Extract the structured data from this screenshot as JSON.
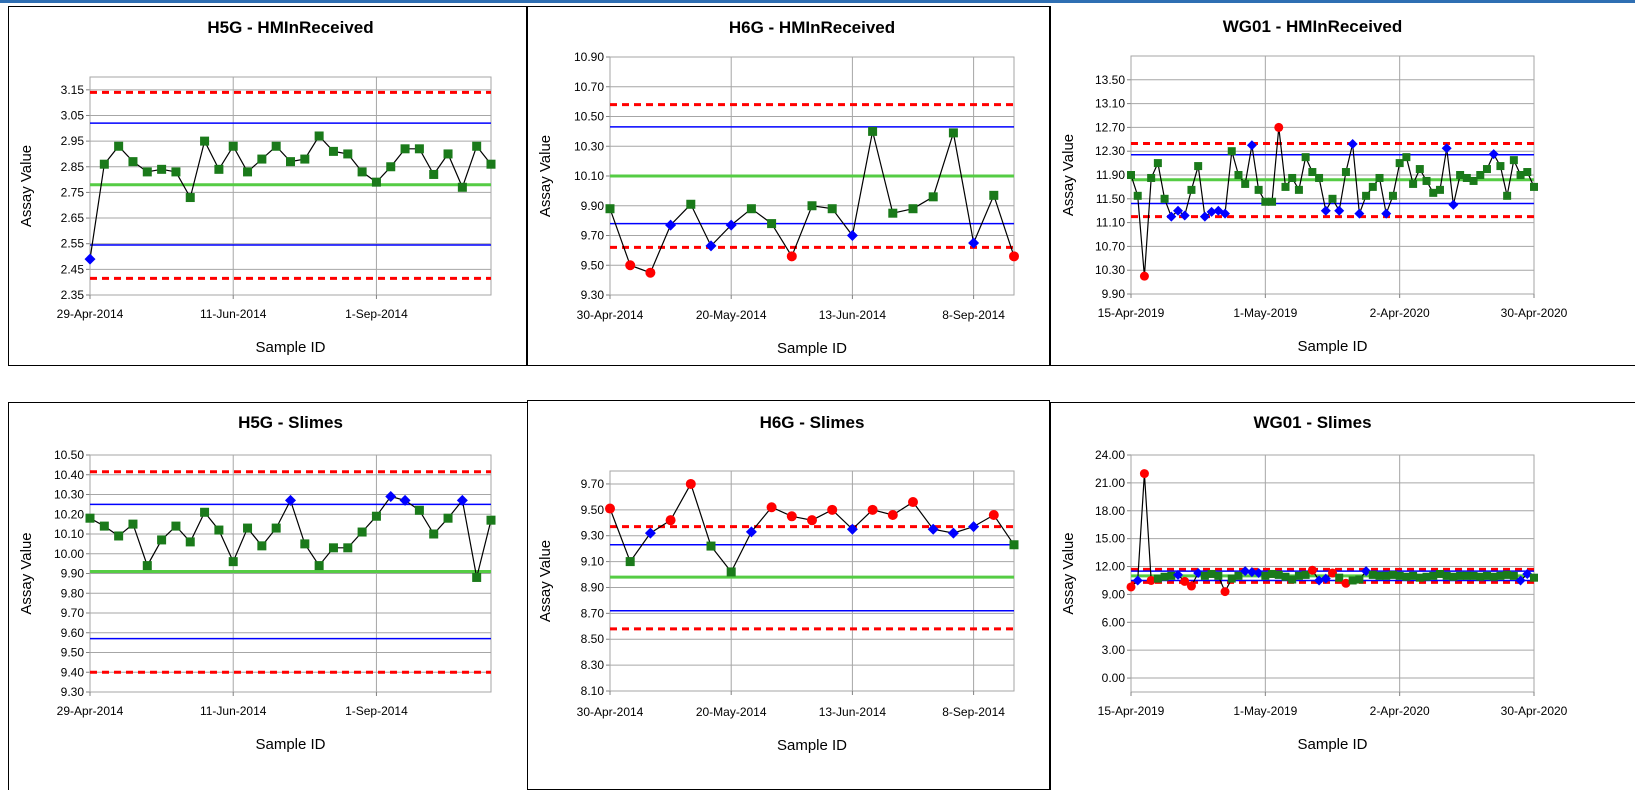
{
  "styles": {
    "grid": "#a6a6a6",
    "series_line": "#000000",
    "upper_lower_limit": "#ff0000",
    "warning_limit": "#0000ff",
    "mean_line": "#55cc44",
    "marker_in": "#1a7a1a",
    "marker_warn": "#0000ff",
    "marker_out": "#ff0000"
  },
  "chart_data": [
    {
      "type": "line",
      "title": "H5G - HMInReceived",
      "xlabel": "Sample ID",
      "ylabel": "Assay Value",
      "ylim": [
        2.35,
        3.2
      ],
      "yticks": [
        "2.35",
        "2.45",
        "2.55",
        "2.65",
        "2.75",
        "2.85",
        "2.95",
        "3.05",
        "3.15"
      ],
      "xticks": [
        "29-Apr-2014",
        "11-Jun-2014",
        "1-Sep-2014"
      ],
      "xtick_index": [
        0,
        10,
        20
      ],
      "n_points": 29,
      "limits": {
        "ucl": 3.14,
        "lcl": 2.415,
        "uwl": 3.02,
        "lwl": 2.545,
        "mean": 2.78
      },
      "values": [
        2.49,
        2.86,
        2.93,
        2.87,
        2.83,
        2.84,
        2.83,
        2.73,
        2.95,
        2.84,
        2.93,
        2.83,
        2.88,
        2.93,
        2.87,
        2.88,
        2.97,
        2.91,
        2.9,
        2.83,
        2.79,
        2.85,
        2.92,
        2.92,
        2.82,
        2.9,
        2.77,
        2.93,
        2.86
      ],
      "markers": [
        "w",
        "g",
        "g",
        "g",
        "g",
        "g",
        "g",
        "g",
        "g",
        "g",
        "g",
        "g",
        "g",
        "g",
        "g",
        "g",
        "g",
        "g",
        "g",
        "g",
        "g",
        "g",
        "g",
        "g",
        "g",
        "g",
        "g",
        "g",
        "g"
      ]
    },
    {
      "type": "line",
      "title": "H6G - HMInReceived",
      "xlabel": "Sample ID",
      "ylabel": "Assay Value",
      "ylim": [
        9.3,
        10.9
      ],
      "yticks": [
        "9.30",
        "9.50",
        "9.70",
        "9.90",
        "10.10",
        "10.30",
        "10.50",
        "10.70",
        "10.90"
      ],
      "xticks": [
        "30-Apr-2014",
        "20-May-2014",
        "13-Jun-2014",
        "8-Sep-2014"
      ],
      "xtick_index": [
        0,
        6,
        12,
        18
      ],
      "n_points": 21,
      "limits": {
        "ucl": 10.58,
        "lcl": 9.62,
        "uwl": 10.43,
        "lwl": 9.78,
        "mean": 10.1
      },
      "values": [
        9.88,
        9.5,
        9.45,
        9.77,
        9.91,
        9.63,
        9.77,
        9.88,
        9.78,
        9.56,
        9.9,
        9.88,
        9.7,
        10.4,
        9.85,
        9.88,
        9.96,
        10.39,
        9.65,
        9.97,
        9.56
      ],
      "markers": [
        "g",
        "r",
        "r",
        "w",
        "g",
        "w",
        "w",
        "g",
        "g",
        "r",
        "g",
        "g",
        "w",
        "g",
        "g",
        "g",
        "g",
        "g",
        "w",
        "g",
        "r"
      ]
    },
    {
      "type": "line",
      "title": "WG01 - HMInReceived",
      "xlabel": "Sample ID",
      "ylabel": "Assay Value",
      "ylim": [
        9.9,
        13.9
      ],
      "yticks": [
        "9.90",
        "10.30",
        "10.70",
        "11.10",
        "11.50",
        "11.90",
        "12.30",
        "12.70",
        "13.10",
        "13.50"
      ],
      "xticks": [
        "15-Apr-2019",
        "1-May-2019",
        "2-Apr-2020",
        "30-Apr-2020"
      ],
      "xtick_index": [
        0,
        20,
        40,
        60
      ],
      "n_points": 61,
      "limits": {
        "ucl": 12.43,
        "lcl": 11.2,
        "uwl": 12.24,
        "lwl": 11.42,
        "mean": 11.82
      },
      "values": [
        11.9,
        11.55,
        10.2,
        11.85,
        12.1,
        11.5,
        11.2,
        11.3,
        11.22,
        11.65,
        12.05,
        11.2,
        11.28,
        11.3,
        11.25,
        12.3,
        11.9,
        11.75,
        12.4,
        11.65,
        11.45,
        11.45,
        12.7,
        11.7,
        11.85,
        11.65,
        12.2,
        11.95,
        11.85,
        11.3,
        11.5,
        11.3,
        11.95,
        12.42,
        11.25,
        11.55,
        11.7,
        11.85,
        11.25,
        11.55,
        12.1,
        12.2,
        11.75,
        12.0,
        11.8,
        11.6,
        11.65,
        12.35,
        11.4,
        11.9,
        11.85,
        11.8,
        11.9,
        12.0,
        12.25,
        12.05,
        11.55,
        12.15,
        11.9,
        11.95,
        11.7
      ],
      "markers": [
        "g",
        "g",
        "r",
        "g",
        "g",
        "g",
        "w",
        "w",
        "w",
        "g",
        "g",
        "w",
        "w",
        "w",
        "w",
        "g",
        "g",
        "g",
        "w",
        "g",
        "g",
        "g",
        "r",
        "g",
        "g",
        "g",
        "g",
        "g",
        "g",
        "w",
        "g",
        "w",
        "g",
        "w",
        "w",
        "g",
        "g",
        "g",
        "w",
        "g",
        "g",
        "g",
        "g",
        "g",
        "g",
        "g",
        "g",
        "w",
        "w",
        "g",
        "g",
        "g",
        "g",
        "g",
        "w",
        "g",
        "g",
        "g",
        "g",
        "g",
        "g"
      ]
    },
    {
      "type": "line",
      "title": "H5G - Slimes",
      "xlabel": "Sample ID",
      "ylabel": "Assay Value",
      "ylim": [
        9.3,
        10.5
      ],
      "yticks": [
        "9.30",
        "9.40",
        "9.50",
        "9.60",
        "9.70",
        "9.80",
        "9.90",
        "10.00",
        "10.10",
        "10.20",
        "10.30",
        "10.40",
        "10.50"
      ],
      "xticks": [
        "29-Apr-2014",
        "11-Jun-2014",
        "1-Sep-2014"
      ],
      "xtick_index": [
        0,
        10,
        20
      ],
      "n_points": 29,
      "limits": {
        "ucl": 10.415,
        "lcl": 9.4,
        "uwl": 10.25,
        "lwl": 9.57,
        "mean": 9.91
      },
      "values": [
        10.18,
        10.14,
        10.09,
        10.15,
        9.94,
        10.07,
        10.14,
        10.06,
        10.21,
        10.12,
        9.96,
        10.13,
        10.04,
        10.13,
        10.27,
        10.05,
        9.94,
        10.03,
        10.03,
        10.11,
        10.19,
        10.29,
        10.27,
        10.22,
        10.1,
        10.18,
        10.27,
        9.88,
        10.17
      ],
      "markers": [
        "g",
        "g",
        "g",
        "g",
        "g",
        "g",
        "g",
        "g",
        "g",
        "g",
        "g",
        "g",
        "g",
        "g",
        "w",
        "g",
        "g",
        "g",
        "g",
        "g",
        "g",
        "w",
        "w",
        "g",
        "g",
        "g",
        "w",
        "g",
        "g"
      ]
    },
    {
      "type": "line",
      "title": "H6G - Slimes",
      "xlabel": "Sample ID",
      "ylabel": "Assay Value",
      "ylim": [
        8.1,
        9.8
      ],
      "yticks": [
        "8.10",
        "8.30",
        "8.50",
        "8.70",
        "8.90",
        "9.10",
        "9.30",
        "9.50",
        "9.70"
      ],
      "xticks": [
        "30-Apr-2014",
        "20-May-2014",
        "13-Jun-2014",
        "8-Sep-2014"
      ],
      "xtick_index": [
        0,
        6,
        12,
        18
      ],
      "n_points": 21,
      "limits": {
        "ucl": 9.37,
        "lcl": 8.58,
        "uwl": 9.23,
        "lwl": 8.72,
        "mean": 8.98
      },
      "values": [
        9.51,
        9.1,
        9.32,
        9.42,
        9.7,
        9.22,
        9.02,
        9.33,
        9.52,
        9.45,
        9.42,
        9.5,
        9.35,
        9.5,
        9.46,
        9.56,
        9.35,
        9.32,
        9.37,
        9.46,
        9.23
      ],
      "markers": [
        "r",
        "g",
        "w",
        "r",
        "r",
        "g",
        "g",
        "w",
        "r",
        "r",
        "r",
        "r",
        "w",
        "r",
        "r",
        "r",
        "w",
        "w",
        "w",
        "r",
        "g"
      ]
    },
    {
      "type": "line",
      "title": "WG01 - Slimes",
      "xlabel": "Sample ID",
      "ylabel": "Assay Value",
      "ylim": [
        -1.5,
        24.0
      ],
      "yticks": [
        "0.00",
        "3.00",
        "6.00",
        "9.00",
        "12.00",
        "15.00",
        "18.00",
        "21.00",
        "24.00"
      ],
      "xticks": [
        "15-Apr-2019",
        "1-May-2019",
        "2-Apr-2020",
        "30-Apr-2020"
      ],
      "xtick_index": [
        0,
        20,
        40,
        60
      ],
      "n_points": 61,
      "limits": {
        "ucl": 11.7,
        "lcl": 10.3,
        "uwl": 11.5,
        "lwl": 10.5,
        "mean": 11.0
      },
      "values": [
        9.8,
        10.5,
        22.0,
        10.5,
        10.7,
        10.9,
        11.0,
        11.1,
        10.4,
        9.9,
        11.3,
        11.0,
        11.2,
        11.0,
        9.3,
        10.7,
        11.0,
        11.5,
        11.4,
        11.3,
        11.0,
        11.2,
        11.1,
        10.9,
        10.6,
        11.0,
        11.1,
        11.6,
        10.5,
        10.7,
        11.3,
        10.8,
        10.2,
        10.5,
        10.6,
        11.5,
        11.1,
        11.0,
        11.0,
        11.1,
        11.0,
        10.9,
        11.0,
        10.8,
        10.9,
        11.0,
        11.2,
        11.0,
        10.9,
        11.0,
        11.0,
        11.0,
        10.9,
        11.0,
        10.9,
        11.0,
        11.1,
        11.0,
        10.5,
        11.2,
        10.8
      ],
      "markers": [
        "r",
        "w",
        "r",
        "r",
        "g",
        "g",
        "g",
        "w",
        "r",
        "r",
        "w",
        "g",
        "g",
        "g",
        "r",
        "g",
        "g",
        "w",
        "w",
        "w",
        "g",
        "g",
        "g",
        "g",
        "g",
        "g",
        "g",
        "r",
        "w",
        "w",
        "r",
        "g",
        "r",
        "g",
        "g",
        "w",
        "g",
        "g",
        "g",
        "g",
        "g",
        "g",
        "g",
        "g",
        "g",
        "g",
        "g",
        "g",
        "g",
        "g",
        "g",
        "g",
        "g",
        "g",
        "g",
        "g",
        "g",
        "g",
        "w",
        "w",
        "g"
      ]
    }
  ]
}
